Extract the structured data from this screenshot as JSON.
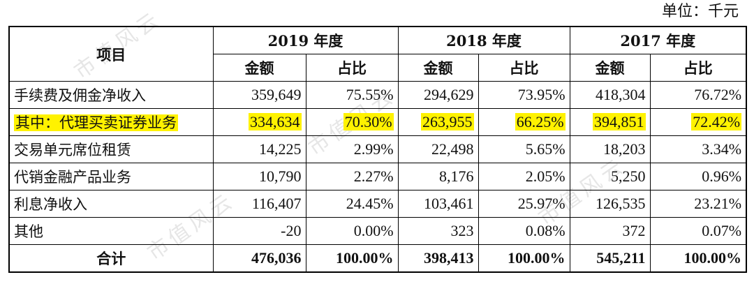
{
  "unit": "单位：千元",
  "watermark": "市值风云",
  "header": {
    "item": "项目",
    "years": [
      "2019 年度",
      "2018 年度",
      "2017 年度"
    ],
    "amount": "金额",
    "ratio": "占比"
  },
  "rows": [
    {
      "label": "手续费及佣金净收入",
      "v": [
        "359,649",
        "75.55%",
        "294,629",
        "73.95%",
        "418,304",
        "76.72%"
      ],
      "highlight": false
    },
    {
      "label": "其中：代理买卖证券业务",
      "v": [
        "334,634",
        "70.30%",
        "263,955",
        "66.25%",
        "394,851",
        "72.42%"
      ],
      "highlight": true
    },
    {
      "label": "交易单元席位租赁",
      "v": [
        "14,225",
        "2.99%",
        "22,498",
        "5.65%",
        "18,203",
        "3.34%"
      ],
      "highlight": false
    },
    {
      "label": "代销金融产品业务",
      "v": [
        "10,790",
        "2.27%",
        "8,176",
        "2.05%",
        "5,250",
        "0.96%"
      ],
      "highlight": false
    },
    {
      "label": "利息净收入",
      "v": [
        "116,407",
        "24.45%",
        "103,461",
        "25.97%",
        "126,535",
        "23.21%"
      ],
      "highlight": false
    },
    {
      "label": "其他",
      "v": [
        "-20",
        "0.00%",
        "323",
        "0.08%",
        "372",
        "0.07%"
      ],
      "highlight": false
    }
  ],
  "total": {
    "label": "合计",
    "v": [
      "476,036",
      "100.00%",
      "398,413",
      "100.00%",
      "545,211",
      "100.00%"
    ]
  },
  "colors": {
    "highlight": "#fff200",
    "border": "#000000"
  }
}
